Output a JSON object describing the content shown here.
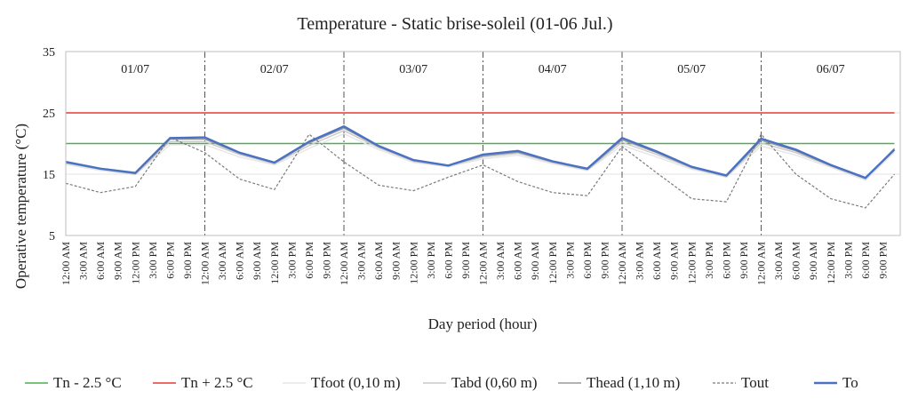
{
  "chart_data": {
    "type": "line",
    "title": "Temperature - Static brise-soleil (01-06 Jul.)",
    "xlabel": "Day period (hour)",
    "ylabel": "Operative temperature (°C)",
    "ylim": [
      5,
      35
    ],
    "yticks": [
      5,
      15,
      25,
      35
    ],
    "days": [
      "01/07",
      "02/07",
      "03/07",
      "04/07",
      "05/07",
      "06/07"
    ],
    "hour_tick_labels": [
      "12:00 AM",
      "3:00 AM",
      "6:00 AM",
      "9:00 AM",
      "12:00 PM",
      "3:00 PM",
      "6:00 PM",
      "9:00 PM"
    ],
    "x_hours": [
      0,
      6,
      12,
      18,
      24,
      30,
      36,
      42,
      48,
      54,
      60,
      66,
      72,
      78,
      84,
      90,
      96,
      102,
      108,
      114,
      120,
      126,
      132,
      138,
      143
    ],
    "legend_position": "bottom",
    "grid": true,
    "series": [
      {
        "name": "Tn - 2.5 °C",
        "color": "#4caf50",
        "dash": "",
        "width": 1.4,
        "values": [
          20,
          20,
          20,
          20,
          20,
          20,
          20,
          20,
          20,
          20,
          20,
          20,
          20,
          20,
          20,
          20,
          20,
          20,
          20,
          20,
          20,
          20,
          20,
          20,
          20
        ]
      },
      {
        "name": "Tn + 2.5 °C",
        "color": "#e53935",
        "dash": "",
        "width": 1.4,
        "values": [
          25,
          25,
          25,
          25,
          25,
          25,
          25,
          25,
          25,
          25,
          25,
          25,
          25,
          25,
          25,
          25,
          25,
          25,
          25,
          25,
          25,
          25,
          25,
          25,
          25
        ]
      },
      {
        "name": "Tfoot (0,10 m)",
        "color": "#e6e6e6",
        "dash": "",
        "width": 1.4,
        "values": [
          16.6,
          15.6,
          14.9,
          19.8,
          19.8,
          17.8,
          16.5,
          19.2,
          21.6,
          19.0,
          16.9,
          16.2,
          17.5,
          18.1,
          16.7,
          15.6,
          19.7,
          17.8,
          15.8,
          14.5,
          19.6,
          18.1,
          16.1,
          14.0,
          18.6
        ]
      },
      {
        "name": "Tabd (0,60 m)",
        "color": "#c8c8c8",
        "dash": "",
        "width": 1.4,
        "values": [
          16.8,
          15.8,
          15.0,
          20.3,
          20.3,
          18.2,
          16.7,
          19.7,
          22.1,
          19.3,
          17.1,
          16.3,
          17.8,
          18.4,
          16.9,
          15.7,
          20.2,
          18.2,
          16.0,
          14.6,
          20.1,
          18.5,
          16.3,
          14.2,
          19.0
        ]
      },
      {
        "name": "Thead (1,10 m)",
        "color": "#9a9a9a",
        "dash": "",
        "width": 1.4,
        "values": [
          16.9,
          15.9,
          15.1,
          20.7,
          20.7,
          18.4,
          16.8,
          20.1,
          22.5,
          19.5,
          17.2,
          16.4,
          18.0,
          18.6,
          17.0,
          15.8,
          20.6,
          18.5,
          16.1,
          14.7,
          20.5,
          18.8,
          16.4,
          14.3,
          19.2
        ]
      },
      {
        "name": "Tout",
        "color": "#7a7a7a",
        "dash": "3,2",
        "width": 1.2,
        "values": [
          13.5,
          12.0,
          13.0,
          21.0,
          18.5,
          14.2,
          12.5,
          21.5,
          17.0,
          13.2,
          12.3,
          14.5,
          16.5,
          13.8,
          12.0,
          11.5,
          19.5,
          15.2,
          11.0,
          10.5,
          21.5,
          15.0,
          11.0,
          9.5,
          15.0
        ]
      },
      {
        "name": "To",
        "color": "#4a72c4",
        "dash": "",
        "width": 2.4,
        "values": [
          17.0,
          15.9,
          15.2,
          20.9,
          21.0,
          18.5,
          16.9,
          20.3,
          22.8,
          19.6,
          17.3,
          16.4,
          18.2,
          18.8,
          17.1,
          15.9,
          20.9,
          18.7,
          16.2,
          14.8,
          20.8,
          19.0,
          16.5,
          14.4,
          19.0
        ]
      }
    ]
  }
}
